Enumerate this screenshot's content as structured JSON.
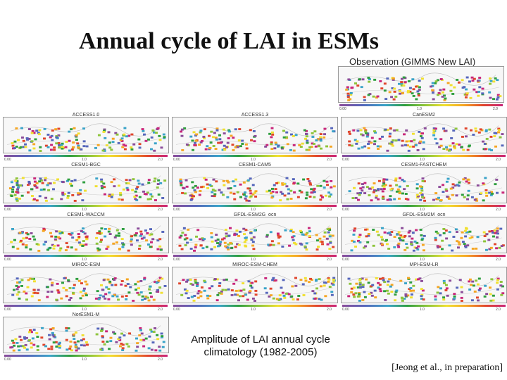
{
  "title": "Annual cycle of LAI in ESMs",
  "observation_label": "Observation (GIMMS New LAI)",
  "panel_labels": [
    "ACCESS1.0",
    "ACCESS1.3",
    "CanESM2",
    "CESM1-BGC",
    "CESM1-CAM5",
    "CESM1-FASTCHEM",
    "CESM1-WACCM",
    "GFDL-ESM2G_ocn",
    "GFDL-ESM2M_ocn",
    "MIROC-ESM",
    "MIROC-ESM-CHEM",
    "MPI-ESM-LR",
    "NorESM1-M"
  ],
  "colorbar_ticks": [
    "0.00",
    "1.0",
    "2.0"
  ],
  "caption_line1": "Amplitude of LAI annual cycle",
  "caption_line2": "climatology (1982-2005)",
  "citation": "[Jeong et al., in preparation]",
  "colorscale": [
    "#8b4c99",
    "#5566bb",
    "#3aa3c8",
    "#2e9e3e",
    "#8dc43a",
    "#f0e030",
    "#f5a623",
    "#e0452c",
    "#c8267a"
  ]
}
